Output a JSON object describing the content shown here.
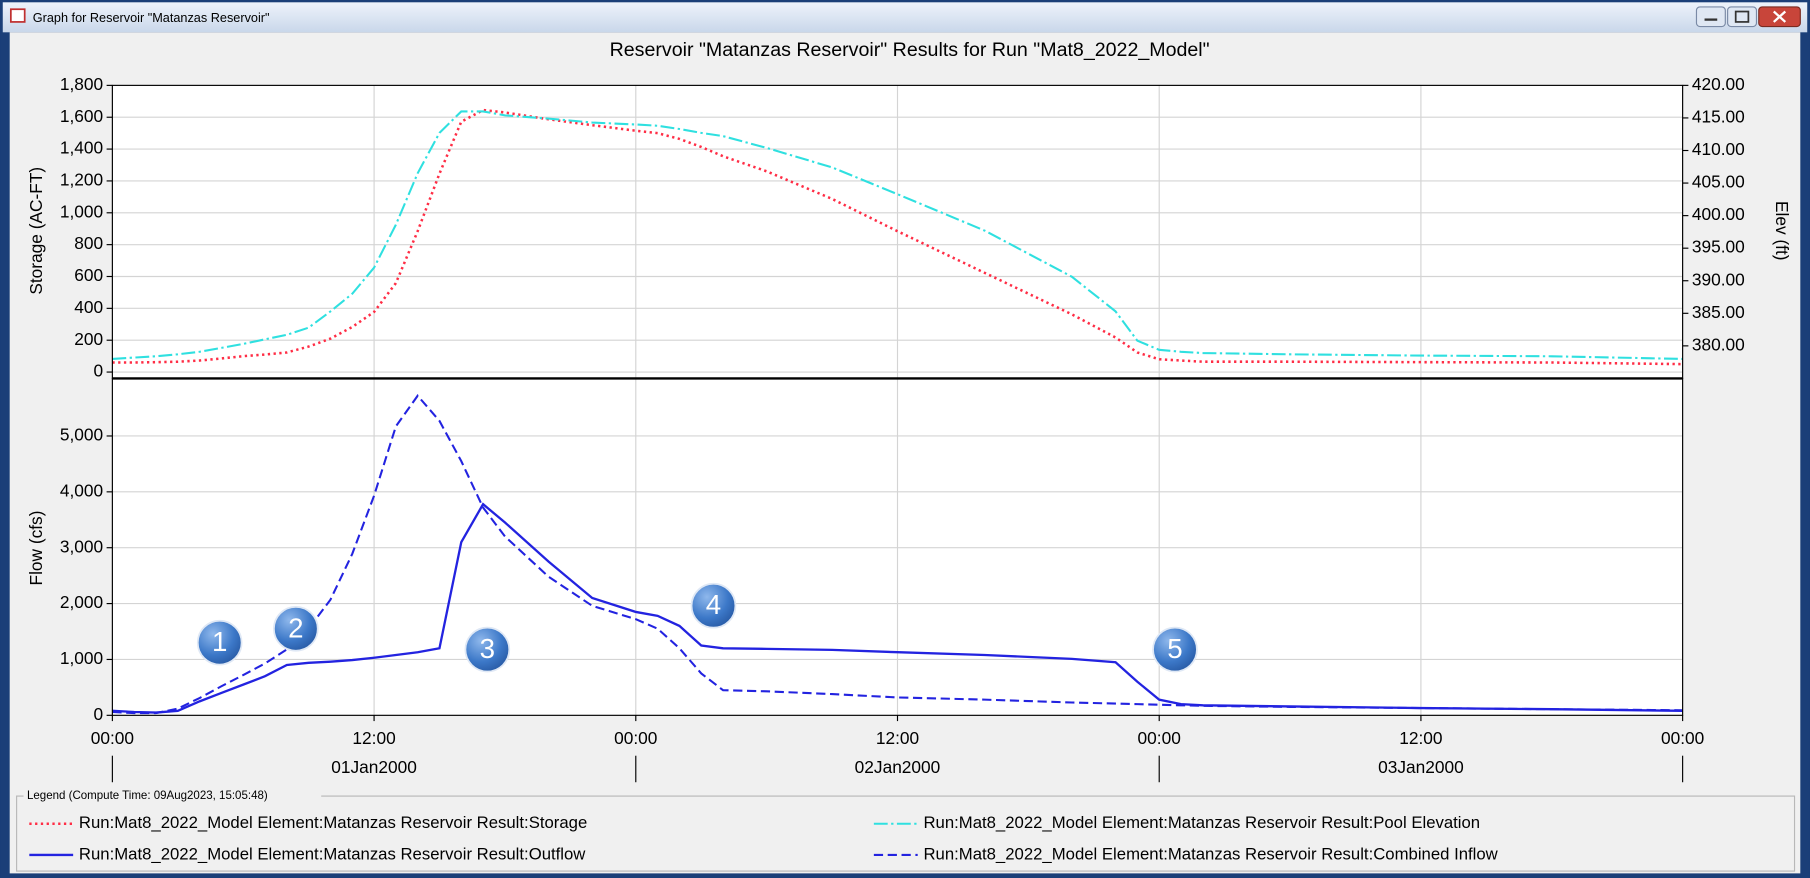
{
  "window": {
    "title": "Graph for Reservoir \"Matanzas Reservoir\""
  },
  "legend": {
    "title": "Legend (Compute Time: 09Aug2023, 15:05:48)"
  },
  "chart_data": [
    {
      "type": "line",
      "title": "Reservoir \"Matanzas Reservoir\" Results for Run \"Mat8_2022_Model\"",
      "ylabel": "Storage (AC-FT)",
      "y2label": "Elev (ft)",
      "x": [
        0,
        1,
        2,
        3,
        4,
        5,
        6,
        7,
        8,
        9,
        10,
        11,
        12,
        13,
        14,
        15,
        16,
        17,
        18,
        20,
        22,
        24,
        25,
        26,
        27,
        28,
        30,
        33,
        36,
        40,
        44,
        46,
        47,
        48,
        49,
        50,
        54,
        60,
        66,
        72
      ],
      "xlim": [
        0,
        72
      ],
      "ylim": [
        -40,
        1800
      ],
      "yticks": [
        0,
        200,
        400,
        600,
        800,
        {
          "value": 1000,
          "label": "1,000"
        },
        {
          "value": 1200,
          "label": "1,200"
        },
        {
          "value": 1400,
          "label": "1,400"
        },
        {
          "value": 1600,
          "label": "1,600"
        },
        {
          "value": 1800,
          "label": "1,800"
        }
      ],
      "y2lim": [
        375,
        420
      ],
      "y2ticks": [
        {
          "value": 380,
          "label": "380.00"
        },
        {
          "value": 385,
          "label": "385.00"
        },
        {
          "value": 390,
          "label": "390.00"
        },
        {
          "value": 395,
          "label": "395.00"
        },
        {
          "value": 400,
          "label": "400.00"
        },
        {
          "value": 405,
          "label": "405.00"
        },
        {
          "value": 410,
          "label": "410.00"
        },
        {
          "value": 415,
          "label": "415.00"
        },
        {
          "value": 420,
          "label": "420.00"
        }
      ],
      "grid": true,
      "series": [
        {
          "name": "Run:Mat8_2022_Model Element:Matanzas Reservoir Result:Storage",
          "color": "#ff2d45",
          "dash": "dotted",
          "values": [
            60,
            60,
            62,
            65,
            72,
            85,
            100,
            110,
            123,
            160,
            210,
            283,
            377,
            558,
            884,
            1246,
            1572,
            1645,
            1630,
            1587,
            1550,
            1515,
            1500,
            1464,
            1413,
            1355,
            1260,
            1087,
            884,
            623,
            362,
            217,
            123,
            80,
            72,
            65,
            65,
            62,
            60,
            50
          ]
        },
        {
          "name": "Run:Mat8_2022_Model Element:Matanzas Reservoir Result:Pool Elevation",
          "color": "#2fe0e0",
          "dash": "dashdot",
          "axis": "y2",
          "values": [
            378.0,
            378.2,
            378.4,
            378.7,
            379.1,
            379.7,
            380.3,
            381.0,
            381.7,
            382.8,
            385.3,
            388.0,
            392.0,
            398.6,
            406.5,
            412.7,
            416.0,
            416.0,
            415.4,
            414.9,
            414.3,
            414.0,
            413.8,
            413.3,
            412.7,
            412.2,
            410.4,
            407.4,
            403.3,
            397.7,
            390.6,
            385.3,
            380.8,
            379.4,
            379.1,
            378.9,
            378.7,
            378.5,
            378.4,
            378.0
          ]
        }
      ]
    },
    {
      "type": "line",
      "ylabel": "Flow (cfs)",
      "x": [
        0,
        1,
        2,
        3,
        4,
        5,
        6,
        7,
        8,
        9,
        10,
        11,
        12,
        13,
        14,
        15,
        16,
        17,
        18,
        20,
        22,
        24,
        25,
        26,
        27,
        28,
        30,
        33,
        36,
        40,
        44,
        46,
        47,
        48,
        49,
        50,
        54,
        60,
        66,
        72
      ],
      "xlim": [
        0,
        72
      ],
      "xticks": [
        {
          "value": 0,
          "label": "00:00"
        },
        {
          "value": 12,
          "label": "12:00"
        },
        {
          "value": 24,
          "label": "00:00"
        },
        {
          "value": 36,
          "label": "12:00"
        },
        {
          "value": 48,
          "label": "00:00"
        },
        {
          "value": 60,
          "label": "12:00"
        },
        {
          "value": 72,
          "label": "00:00"
        }
      ],
      "x_groups": [
        {
          "value": 12,
          "label": "01Jan2000"
        },
        {
          "value": 36,
          "label": "02Jan2000"
        },
        {
          "value": 60,
          "label": "03Jan2000"
        }
      ],
      "ylim": [
        0,
        6030
      ],
      "yticks": [
        0,
        {
          "value": 1000,
          "label": "1,000"
        },
        {
          "value": 2000,
          "label": "2,000"
        },
        {
          "value": 3000,
          "label": "3,000"
        },
        {
          "value": 4000,
          "label": "4,000"
        },
        {
          "value": 5000,
          "label": "5,000"
        }
      ],
      "grid": true,
      "series": [
        {
          "name": "Run:Mat8_2022_Model Element:Matanzas Reservoir Result:Outflow",
          "color": "#2323e0",
          "dash": "solid",
          "values": [
            80,
            60,
            50,
            80,
            250,
            400,
            550,
            700,
            900,
            940,
            960,
            990,
            1030,
            1080,
            1130,
            1200,
            3100,
            3780,
            3450,
            2750,
            2100,
            1850,
            1780,
            1600,
            1250,
            1200,
            1190,
            1170,
            1130,
            1080,
            1010,
            950,
            600,
            280,
            200,
            180,
            160,
            130,
            110,
            80
          ]
        },
        {
          "name": "Run:Mat8_2022_Model Element:Matanzas Reservoir Result:Combined Inflow",
          "color": "#2323e0",
          "dash": "dashed",
          "values": [
            60,
            40,
            40,
            120,
            310,
            520,
            720,
            930,
            1180,
            1550,
            2070,
            2890,
            3930,
            5170,
            5720,
            5270,
            4550,
            3720,
            3200,
            2480,
            1960,
            1720,
            1550,
            1200,
            750,
            450,
            430,
            380,
            320,
            280,
            230,
            210,
            200,
            190,
            180,
            170,
            150,
            130,
            110,
            90
          ]
        }
      ],
      "annotations": [
        "1",
        "2",
        "3",
        "4",
        "5"
      ]
    }
  ]
}
